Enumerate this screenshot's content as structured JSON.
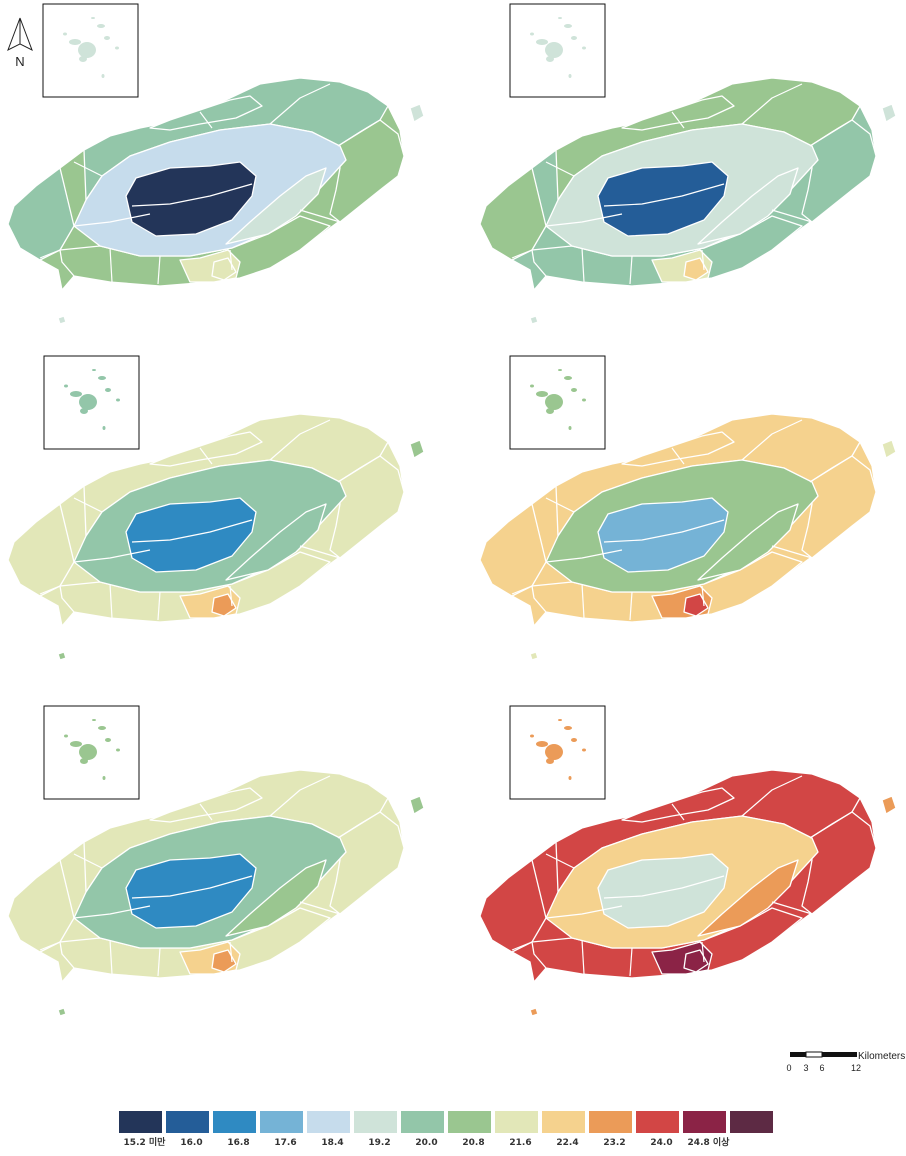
{
  "compass": {
    "label": "N"
  },
  "scale_bar": {
    "unit": "Kilometers",
    "ticks": [
      "0",
      "3",
      "6",
      "12"
    ]
  },
  "legend": {
    "classes": [
      {
        "label": "15.2 미만",
        "color": "#233559"
      },
      {
        "label": "16.0",
        "color": "#245d98"
      },
      {
        "label": "16.8",
        "color": "#2f8ac2"
      },
      {
        "label": "17.6",
        "color": "#75b3d6"
      },
      {
        "label": "18.4",
        "color": "#c6dcec"
      },
      {
        "label": "19.2",
        "color": "#cfe3d9"
      },
      {
        "label": "20.0",
        "color": "#93c6a9"
      },
      {
        "label": "20.8",
        "color": "#9ac690"
      },
      {
        "label": "21.6",
        "color": "#e2e7b8"
      },
      {
        "label": "22.4",
        "color": "#f5d28e"
      },
      {
        "label": "23.2",
        "color": "#eb9b58"
      },
      {
        "label": "24.0",
        "color": "#d24645"
      },
      {
        "label": "24.8 이상",
        "color": "#8b2346"
      },
      {
        "label": "",
        "color": "#5d2a44"
      }
    ]
  },
  "maps": [
    {
      "id": "panel-1",
      "zones": [
        "#233559",
        "#c6dcec",
        "#cfe3d9",
        "#93c6a9",
        "#9ac690",
        "#e2e7b8",
        "#e2e7b8"
      ],
      "islet": "#cfe3d9",
      "inset": "#cfe3d9"
    },
    {
      "id": "panel-2",
      "zones": [
        "#245d98",
        "#cfe3d9",
        "#cfe3d9",
        "#9ac690",
        "#93c6a9",
        "#e2e7b8",
        "#f5d28e"
      ],
      "islet": "#cfe3d9",
      "inset": "#cfe3d9"
    },
    {
      "id": "panel-3",
      "zones": [
        "#2f8ac2",
        "#93c6a9",
        "#93c6a9",
        "#e2e7b8",
        "#e2e7b8",
        "#f5d28e",
        "#eb9b58"
      ],
      "islet": "#9ac690",
      "inset": "#93c6a9"
    },
    {
      "id": "panel-4",
      "zones": [
        "#75b3d6",
        "#9ac690",
        "#9ac690",
        "#f5d28e",
        "#f5d28e",
        "#eb9b58",
        "#d24645"
      ],
      "islet": "#e2e7b8",
      "inset": "#9ac690"
    },
    {
      "id": "panel-5",
      "zones": [
        "#2f8ac2",
        "#93c6a9",
        "#9ac690",
        "#e2e7b8",
        "#e2e7b8",
        "#f5d28e",
        "#eb9b58"
      ],
      "islet": "#9ac690",
      "inset": "#9ac690"
    },
    {
      "id": "panel-6",
      "zones": [
        "#cfe3d9",
        "#f5d28e",
        "#eb9b58",
        "#d24645",
        "#d24645",
        "#8b2346",
        "#8b2346"
      ],
      "islet": "#eb9b58",
      "inset": "#eb9b58"
    }
  ]
}
